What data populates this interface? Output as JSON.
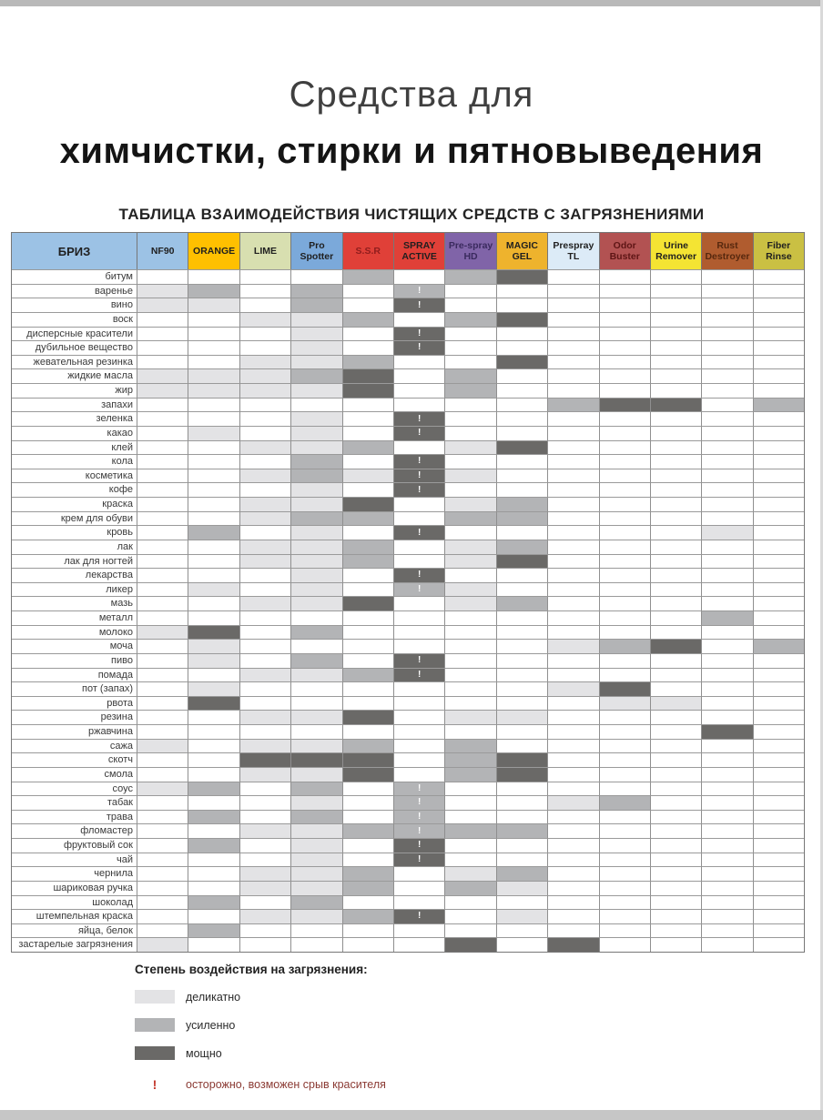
{
  "page": {
    "title_line1": "Средства для",
    "title_line2": "химчистки, стирки и пятновыведения",
    "subtitle": "ТАБЛИЦА ВЗАИМОДЕЙСТВИЯ ЧИСТЯЩИХ СРЕДСТВ С ЗАГРЯЗНЕНИЯМИ"
  },
  "table": {
    "corner_label": "БРИЗ",
    "corner_bg": "#9cc2e5",
    "corner_fg": "#1f1f1f",
    "intensity_colors": {
      "L": "#e3e3e5",
      "M": "#b3b4b6",
      "D": "#6a6967"
    },
    "columns": [
      {
        "label": "NF90",
        "bg": "#9cc2e5",
        "fg": "#1f1f1f"
      },
      {
        "label": "ORANGE",
        "bg": "#ffc000",
        "fg": "#1f1f1f"
      },
      {
        "label": "LIME",
        "bg": "#d8dfb0",
        "fg": "#1f1f1f"
      },
      {
        "label": "Pro Spotter",
        "bg": "#7ba9da",
        "fg": "#1f1f1f"
      },
      {
        "label": "S.S.R",
        "bg": "#e04038",
        "fg": "#8f1d1d"
      },
      {
        "label": "SPRAY ACTIVE",
        "bg": "#e04038",
        "fg": "#1f1f1f"
      },
      {
        "label": "Pre-spray HD",
        "bg": "#8064a8",
        "fg": "#3a2a5e"
      },
      {
        "label": "MAGIC GEL",
        "bg": "#eeb32d",
        "fg": "#1f1f1f"
      },
      {
        "label": "Prespray TL",
        "bg": "#dcebf7",
        "fg": "#1f1f1f"
      },
      {
        "label": "Odor Buster",
        "bg": "#b25252",
        "fg": "#5e1515"
      },
      {
        "label": "Urine Remover",
        "bg": "#f4e433",
        "fg": "#1f1f1f"
      },
      {
        "label": "Rust Destroyer",
        "bg": "#b05c2f",
        "fg": "#57280e"
      },
      {
        "label": "Fiber Rinse",
        "bg": "#cac043",
        "fg": "#1f1f1f"
      }
    ],
    "rows": [
      {
        "label": "битум",
        "cells": [
          "",
          "",
          "",
          "",
          "M",
          "",
          "M",
          "D",
          "",
          "",
          "",
          "",
          ""
        ]
      },
      {
        "label": "варенье",
        "cells": [
          "L",
          "M",
          "",
          "M",
          "",
          "M!",
          "",
          "",
          "",
          "",
          "",
          "",
          ""
        ]
      },
      {
        "label": "вино",
        "cells": [
          "L",
          "L",
          "",
          "M",
          "",
          "D!",
          "",
          "",
          "",
          "",
          "",
          "",
          ""
        ]
      },
      {
        "label": "воск",
        "cells": [
          "",
          "",
          "L",
          "L",
          "M",
          "",
          "M",
          "D",
          "",
          "",
          "",
          "",
          ""
        ]
      },
      {
        "label": "дисперсные красители",
        "cells": [
          "",
          "",
          "",
          "L",
          "",
          "D!",
          "",
          "",
          "",
          "",
          "",
          "",
          ""
        ]
      },
      {
        "label": "дубильное вещество",
        "cells": [
          "",
          "",
          "",
          "L",
          "",
          "D!",
          "",
          "",
          "",
          "",
          "",
          "",
          ""
        ]
      },
      {
        "label": "жевательная резинка",
        "cells": [
          "",
          "",
          "L",
          "L",
          "M",
          "",
          "",
          "D",
          "",
          "",
          "",
          "",
          ""
        ]
      },
      {
        "label": "жидкие масла",
        "cells": [
          "L",
          "L",
          "L",
          "M",
          "D",
          "",
          "M",
          "",
          "",
          "",
          "",
          "",
          ""
        ]
      },
      {
        "label": "жир",
        "cells": [
          "L",
          "L",
          "L",
          "L",
          "D",
          "",
          "M",
          "",
          "",
          "",
          "",
          "",
          ""
        ]
      },
      {
        "label": "запахи",
        "cells": [
          "",
          "",
          "",
          "",
          "",
          "",
          "",
          "",
          "M",
          "D",
          "D",
          "",
          "M"
        ]
      },
      {
        "label": "зеленка",
        "cells": [
          "",
          "",
          "",
          "L",
          "",
          "D!",
          "",
          "",
          "",
          "",
          "",
          "",
          ""
        ]
      },
      {
        "label": "какао",
        "cells": [
          "",
          "L",
          "",
          "L",
          "",
          "D!",
          "",
          "",
          "",
          "",
          "",
          "",
          ""
        ]
      },
      {
        "label": "клей",
        "cells": [
          "",
          "",
          "L",
          "L",
          "M",
          "",
          "L",
          "D",
          "",
          "",
          "",
          "",
          ""
        ]
      },
      {
        "label": "кола",
        "cells": [
          "",
          "",
          "",
          "M",
          "",
          "D!",
          "",
          "",
          "",
          "",
          "",
          "",
          ""
        ]
      },
      {
        "label": "косметика",
        "cells": [
          "",
          "",
          "L",
          "M",
          "L",
          "D!",
          "L",
          "",
          "",
          "",
          "",
          "",
          ""
        ]
      },
      {
        "label": "кофе",
        "cells": [
          "",
          "",
          "",
          "L",
          "",
          "D!",
          "",
          "",
          "",
          "",
          "",
          "",
          ""
        ]
      },
      {
        "label": "краска",
        "cells": [
          "",
          "",
          "L",
          "L",
          "D",
          "",
          "L",
          "M",
          "",
          "",
          "",
          "",
          ""
        ]
      },
      {
        "label": "крем для обуви",
        "cells": [
          "",
          "",
          "L",
          "M",
          "M",
          "",
          "M",
          "M",
          "",
          "",
          "",
          "",
          ""
        ]
      },
      {
        "label": "кровь",
        "cells": [
          "",
          "M",
          "",
          "L",
          "",
          "D!",
          "",
          "",
          "",
          "",
          "",
          "L",
          ""
        ]
      },
      {
        "label": "лак",
        "cells": [
          "",
          "",
          "L",
          "L",
          "M",
          "",
          "L",
          "M",
          "",
          "",
          "",
          "",
          ""
        ]
      },
      {
        "label": "лак для ногтей",
        "cells": [
          "",
          "",
          "L",
          "L",
          "M",
          "",
          "L",
          "D",
          "",
          "",
          "",
          "",
          ""
        ]
      },
      {
        "label": "лекарства",
        "cells": [
          "",
          "",
          "",
          "L",
          "",
          "D!",
          "",
          "",
          "",
          "",
          "",
          "",
          ""
        ]
      },
      {
        "label": "ликер",
        "cells": [
          "",
          "L",
          "",
          "L",
          "",
          "M!",
          "L",
          "",
          "",
          "",
          "",
          "",
          ""
        ]
      },
      {
        "label": "мазь",
        "cells": [
          "",
          "",
          "L",
          "L",
          "D",
          "",
          "L",
          "M",
          "",
          "",
          "",
          "",
          ""
        ]
      },
      {
        "label": "металл",
        "cells": [
          "",
          "",
          "",
          "",
          "",
          "",
          "",
          "",
          "",
          "",
          "",
          "M",
          ""
        ]
      },
      {
        "label": "молоко",
        "cells": [
          "L",
          "D",
          "",
          "M",
          "",
          "",
          "",
          "",
          "",
          "",
          "",
          "",
          ""
        ]
      },
      {
        "label": "моча",
        "cells": [
          "",
          "L",
          "",
          "",
          "",
          "",
          "",
          "",
          "L",
          "M",
          "D",
          "",
          "M"
        ]
      },
      {
        "label": "пиво",
        "cells": [
          "",
          "L",
          "",
          "M",
          "",
          "D!",
          "",
          "",
          "",
          "",
          "",
          "",
          ""
        ]
      },
      {
        "label": "помада",
        "cells": [
          "",
          "",
          "L",
          "L",
          "M",
          "D!",
          "",
          "",
          "",
          "",
          "",
          "",
          ""
        ]
      },
      {
        "label": "пот (запах)",
        "cells": [
          "",
          "L",
          "",
          "",
          "",
          "",
          "",
          "",
          "L",
          "D",
          "",
          "",
          ""
        ]
      },
      {
        "label": "рвота",
        "cells": [
          "",
          "D",
          "",
          "",
          "",
          "",
          "",
          "",
          "",
          "L",
          "L",
          "",
          ""
        ]
      },
      {
        "label": "резина",
        "cells": [
          "",
          "",
          "L",
          "L",
          "D",
          "",
          "L",
          "L",
          "",
          "",
          "",
          "",
          ""
        ]
      },
      {
        "label": "ржавчина",
        "cells": [
          "",
          "",
          "",
          "",
          "",
          "",
          "",
          "",
          "",
          "",
          "",
          "D",
          ""
        ]
      },
      {
        "label": "сажа",
        "cells": [
          "L",
          "",
          "L",
          "L",
          "M",
          "",
          "M",
          "",
          "",
          "",
          "",
          "",
          ""
        ]
      },
      {
        "label": "скотч",
        "cells": [
          "",
          "",
          "D",
          "D",
          "D",
          "",
          "M",
          "D",
          "",
          "",
          "",
          "",
          ""
        ]
      },
      {
        "label": "смола",
        "cells": [
          "",
          "",
          "L",
          "L",
          "D",
          "",
          "M",
          "D",
          "",
          "",
          "",
          "",
          ""
        ]
      },
      {
        "label": "соус",
        "cells": [
          "L",
          "M",
          "",
          "M",
          "",
          "M!",
          "",
          "",
          "",
          "",
          "",
          "",
          ""
        ]
      },
      {
        "label": "табак",
        "cells": [
          "",
          "",
          "",
          "L",
          "",
          "M!",
          "",
          "",
          "L",
          "M",
          "",
          "",
          ""
        ]
      },
      {
        "label": "трава",
        "cells": [
          "",
          "M",
          "",
          "M",
          "",
          "M!",
          "",
          "",
          "",
          "",
          "",
          "",
          ""
        ]
      },
      {
        "label": "фломастер",
        "cells": [
          "",
          "",
          "L",
          "L",
          "M",
          "M!",
          "M",
          "M",
          "",
          "",
          "",
          "",
          ""
        ]
      },
      {
        "label": "фруктовый сок",
        "cells": [
          "",
          "M",
          "",
          "L",
          "",
          "D!",
          "",
          "",
          "",
          "",
          "",
          "",
          ""
        ]
      },
      {
        "label": "чай",
        "cells": [
          "",
          "",
          "",
          "L",
          "",
          "D!",
          "",
          "",
          "",
          "",
          "",
          "",
          ""
        ]
      },
      {
        "label": "чернила",
        "cells": [
          "",
          "",
          "L",
          "L",
          "M",
          "",
          "L",
          "M",
          "",
          "",
          "",
          "",
          ""
        ]
      },
      {
        "label": "шариковая ручка",
        "cells": [
          "",
          "",
          "L",
          "L",
          "M",
          "",
          "M",
          "L",
          "",
          "",
          "",
          "",
          ""
        ]
      },
      {
        "label": "шоколад",
        "cells": [
          "",
          "M",
          "",
          "M",
          "",
          "",
          "",
          "",
          "",
          "",
          "",
          "",
          ""
        ]
      },
      {
        "label": "штемпельная краска",
        "cells": [
          "",
          "",
          "L",
          "L",
          "M",
          "D!",
          "",
          "L",
          "",
          "",
          "",
          "",
          ""
        ]
      },
      {
        "label": "яйца, белок",
        "cells": [
          "",
          "M",
          "",
          "",
          "",
          "",
          "",
          "",
          "",
          "",
          "",
          "",
          ""
        ]
      },
      {
        "label": "застарелые загрязнения",
        "cells": [
          "L",
          "",
          "",
          "",
          "",
          "",
          "D",
          "",
          "D",
          "",
          "",
          "",
          ""
        ]
      }
    ]
  },
  "legend": {
    "heading": "Степень воздействия на загрязнения:",
    "items": [
      {
        "swatch": "L",
        "label": "деликатно"
      },
      {
        "swatch": "M",
        "label": "усиленно"
      },
      {
        "swatch": "D",
        "label": "мощно"
      }
    ],
    "warning": {
      "symbol": "!",
      "label": "осторожно, возможен срыв красителя",
      "symbol_color": "#c43a2e",
      "label_color": "#8b3a33"
    }
  }
}
